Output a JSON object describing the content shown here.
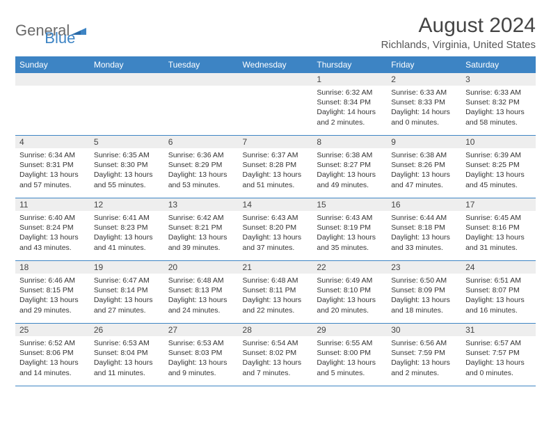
{
  "logo": {
    "general": "General",
    "blue": "Blue"
  },
  "header": {
    "month_title": "August 2024",
    "location": "Richlands, Virginia, United States"
  },
  "colors": {
    "header_bg": "#3d84c4",
    "header_text": "#ffffff",
    "daynum_bg": "#eeeeee",
    "border": "#3d84c4",
    "body_text": "#333333",
    "logo_gray": "#6a6a6a",
    "logo_blue": "#3d84c4"
  },
  "weekdays": [
    "Sunday",
    "Monday",
    "Tuesday",
    "Wednesday",
    "Thursday",
    "Friday",
    "Saturday"
  ],
  "weeks": [
    [
      null,
      null,
      null,
      null,
      {
        "n": "1",
        "sunrise": "6:32 AM",
        "sunset": "8:34 PM",
        "dl": "14 hours and 2 minutes."
      },
      {
        "n": "2",
        "sunrise": "6:33 AM",
        "sunset": "8:33 PM",
        "dl": "14 hours and 0 minutes."
      },
      {
        "n": "3",
        "sunrise": "6:33 AM",
        "sunset": "8:32 PM",
        "dl": "13 hours and 58 minutes."
      }
    ],
    [
      {
        "n": "4",
        "sunrise": "6:34 AM",
        "sunset": "8:31 PM",
        "dl": "13 hours and 57 minutes."
      },
      {
        "n": "5",
        "sunrise": "6:35 AM",
        "sunset": "8:30 PM",
        "dl": "13 hours and 55 minutes."
      },
      {
        "n": "6",
        "sunrise": "6:36 AM",
        "sunset": "8:29 PM",
        "dl": "13 hours and 53 minutes."
      },
      {
        "n": "7",
        "sunrise": "6:37 AM",
        "sunset": "8:28 PM",
        "dl": "13 hours and 51 minutes."
      },
      {
        "n": "8",
        "sunrise": "6:38 AM",
        "sunset": "8:27 PM",
        "dl": "13 hours and 49 minutes."
      },
      {
        "n": "9",
        "sunrise": "6:38 AM",
        "sunset": "8:26 PM",
        "dl": "13 hours and 47 minutes."
      },
      {
        "n": "10",
        "sunrise": "6:39 AM",
        "sunset": "8:25 PM",
        "dl": "13 hours and 45 minutes."
      }
    ],
    [
      {
        "n": "11",
        "sunrise": "6:40 AM",
        "sunset": "8:24 PM",
        "dl": "13 hours and 43 minutes."
      },
      {
        "n": "12",
        "sunrise": "6:41 AM",
        "sunset": "8:23 PM",
        "dl": "13 hours and 41 minutes."
      },
      {
        "n": "13",
        "sunrise": "6:42 AM",
        "sunset": "8:21 PM",
        "dl": "13 hours and 39 minutes."
      },
      {
        "n": "14",
        "sunrise": "6:43 AM",
        "sunset": "8:20 PM",
        "dl": "13 hours and 37 minutes."
      },
      {
        "n": "15",
        "sunrise": "6:43 AM",
        "sunset": "8:19 PM",
        "dl": "13 hours and 35 minutes."
      },
      {
        "n": "16",
        "sunrise": "6:44 AM",
        "sunset": "8:18 PM",
        "dl": "13 hours and 33 minutes."
      },
      {
        "n": "17",
        "sunrise": "6:45 AM",
        "sunset": "8:16 PM",
        "dl": "13 hours and 31 minutes."
      }
    ],
    [
      {
        "n": "18",
        "sunrise": "6:46 AM",
        "sunset": "8:15 PM",
        "dl": "13 hours and 29 minutes."
      },
      {
        "n": "19",
        "sunrise": "6:47 AM",
        "sunset": "8:14 PM",
        "dl": "13 hours and 27 minutes."
      },
      {
        "n": "20",
        "sunrise": "6:48 AM",
        "sunset": "8:13 PM",
        "dl": "13 hours and 24 minutes."
      },
      {
        "n": "21",
        "sunrise": "6:48 AM",
        "sunset": "8:11 PM",
        "dl": "13 hours and 22 minutes."
      },
      {
        "n": "22",
        "sunrise": "6:49 AM",
        "sunset": "8:10 PM",
        "dl": "13 hours and 20 minutes."
      },
      {
        "n": "23",
        "sunrise": "6:50 AM",
        "sunset": "8:09 PM",
        "dl": "13 hours and 18 minutes."
      },
      {
        "n": "24",
        "sunrise": "6:51 AM",
        "sunset": "8:07 PM",
        "dl": "13 hours and 16 minutes."
      }
    ],
    [
      {
        "n": "25",
        "sunrise": "6:52 AM",
        "sunset": "8:06 PM",
        "dl": "13 hours and 14 minutes."
      },
      {
        "n": "26",
        "sunrise": "6:53 AM",
        "sunset": "8:04 PM",
        "dl": "13 hours and 11 minutes."
      },
      {
        "n": "27",
        "sunrise": "6:53 AM",
        "sunset": "8:03 PM",
        "dl": "13 hours and 9 minutes."
      },
      {
        "n": "28",
        "sunrise": "6:54 AM",
        "sunset": "8:02 PM",
        "dl": "13 hours and 7 minutes."
      },
      {
        "n": "29",
        "sunrise": "6:55 AM",
        "sunset": "8:00 PM",
        "dl": "13 hours and 5 minutes."
      },
      {
        "n": "30",
        "sunrise": "6:56 AM",
        "sunset": "7:59 PM",
        "dl": "13 hours and 2 minutes."
      },
      {
        "n": "31",
        "sunrise": "6:57 AM",
        "sunset": "7:57 PM",
        "dl": "13 hours and 0 minutes."
      }
    ]
  ]
}
